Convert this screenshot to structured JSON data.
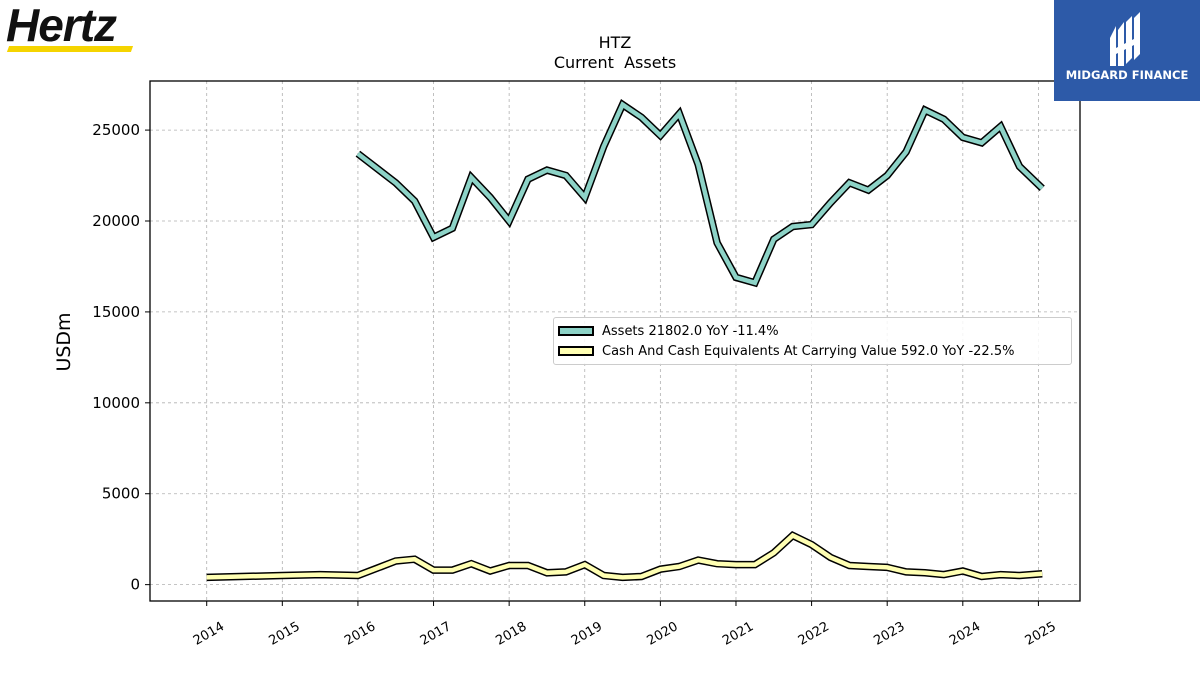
{
  "logos": {
    "left_text": "Hertz",
    "right_text": "MIDGARD FINANCE"
  },
  "chart_data": {
    "type": "line",
    "title": "HTZ",
    "subtitle": "Current  Assets",
    "ylabel": "USDm",
    "xlabel": "",
    "ylim": [
      -900,
      27700
    ],
    "xlim": [
      2013.25,
      2025.55
    ],
    "yticks": [
      0,
      5000,
      10000,
      15000,
      20000,
      25000
    ],
    "ytick_labels": [
      "0",
      "5000",
      "10000",
      "15000",
      "20000",
      "25000"
    ],
    "xticks": [
      2014,
      2015,
      2016,
      2017,
      2018,
      2019,
      2020,
      2021,
      2022,
      2023,
      2024,
      2025
    ],
    "xtick_labels": [
      "2014",
      "2015",
      "2016",
      "2017",
      "2018",
      "2019",
      "2020",
      "2021",
      "2022",
      "2023",
      "2024",
      "2025"
    ],
    "grid": true,
    "legend_position": "center-right",
    "series": [
      {
        "name": "Assets",
        "legend_label": "Assets  21802.0 YoY -11.4%",
        "color": "#8dd3c7",
        "points": [
          [
            2016.0,
            23700
          ],
          [
            2016.5,
            22100
          ],
          [
            2016.75,
            21100
          ],
          [
            2017.0,
            19100
          ],
          [
            2017.25,
            19600
          ],
          [
            2017.5,
            22400
          ],
          [
            2017.75,
            21300
          ],
          [
            2018.0,
            20000
          ],
          [
            2018.25,
            22300
          ],
          [
            2018.5,
            22800
          ],
          [
            2018.75,
            22500
          ],
          [
            2019.0,
            21300
          ],
          [
            2019.25,
            24100
          ],
          [
            2019.5,
            26400
          ],
          [
            2019.75,
            25700
          ],
          [
            2020.0,
            24700
          ],
          [
            2020.25,
            25900
          ],
          [
            2020.5,
            23100
          ],
          [
            2020.75,
            18800
          ],
          [
            2021.0,
            16900
          ],
          [
            2021.25,
            16600
          ],
          [
            2021.5,
            19000
          ],
          [
            2021.75,
            19700
          ],
          [
            2022.0,
            19800
          ],
          [
            2022.25,
            21000
          ],
          [
            2022.5,
            22100
          ],
          [
            2022.75,
            21700
          ],
          [
            2023.0,
            22500
          ],
          [
            2023.25,
            23800
          ],
          [
            2023.5,
            26100
          ],
          [
            2023.75,
            25600
          ],
          [
            2024.0,
            24600
          ],
          [
            2024.25,
            24300
          ],
          [
            2024.5,
            25200
          ],
          [
            2024.75,
            23000
          ],
          [
            2025.05,
            21800
          ]
        ]
      },
      {
        "name": "Cash And Cash Equivalents At Carrying Value",
        "legend_label": "Cash And Cash Equivalents At Carrying Value  592.0 YoY -22.5%",
        "color": "#ffffb3",
        "points": [
          [
            2014.0,
            400
          ],
          [
            2015.0,
            500
          ],
          [
            2015.5,
            550
          ],
          [
            2016.0,
            500
          ],
          [
            2016.25,
            900
          ],
          [
            2016.5,
            1300
          ],
          [
            2016.75,
            1400
          ],
          [
            2017.0,
            800
          ],
          [
            2017.25,
            800
          ],
          [
            2017.5,
            1150
          ],
          [
            2017.75,
            750
          ],
          [
            2018.0,
            1050
          ],
          [
            2018.25,
            1050
          ],
          [
            2018.5,
            650
          ],
          [
            2018.75,
            700
          ],
          [
            2019.0,
            1100
          ],
          [
            2019.25,
            500
          ],
          [
            2019.5,
            400
          ],
          [
            2019.75,
            450
          ],
          [
            2020.0,
            850
          ],
          [
            2020.25,
            1000
          ],
          [
            2020.5,
            1350
          ],
          [
            2020.75,
            1150
          ],
          [
            2021.0,
            1100
          ],
          [
            2021.25,
            1100
          ],
          [
            2021.5,
            1750
          ],
          [
            2021.75,
            2700
          ],
          [
            2022.0,
            2200
          ],
          [
            2022.25,
            1500
          ],
          [
            2022.5,
            1050
          ],
          [
            2022.75,
            1000
          ],
          [
            2023.0,
            950
          ],
          [
            2023.25,
            700
          ],
          [
            2023.5,
            650
          ],
          [
            2023.75,
            550
          ],
          [
            2024.0,
            750
          ],
          [
            2024.25,
            450
          ],
          [
            2024.5,
            550
          ],
          [
            2024.75,
            500
          ],
          [
            2025.05,
            600
          ]
        ]
      }
    ]
  }
}
